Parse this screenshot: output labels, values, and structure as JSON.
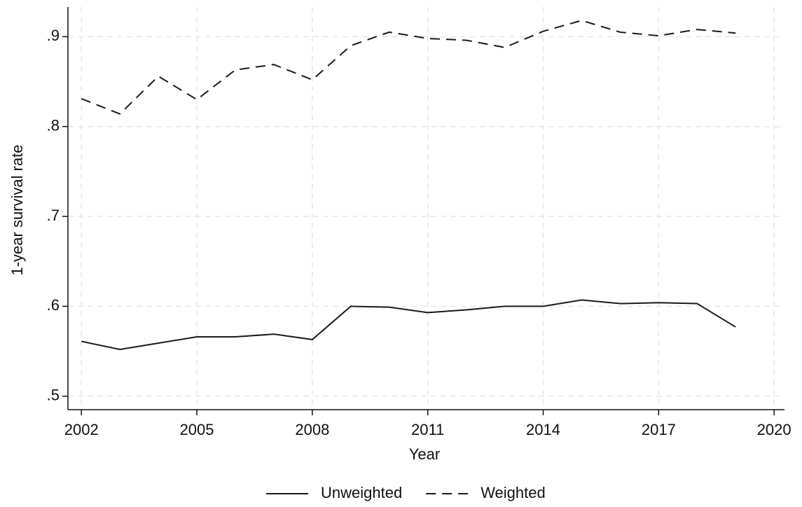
{
  "chart_data": {
    "type": "line",
    "x_label": "Year",
    "y_label": "1-year survival rate",
    "x": [
      2002,
      2003,
      2004,
      2005,
      2006,
      2007,
      2008,
      2009,
      2010,
      2011,
      2012,
      2013,
      2014,
      2015,
      2016,
      2017,
      2018,
      2019
    ],
    "series": [
      {
        "name": "Unweighted",
        "color": "#1a1a1a",
        "dash": "solid",
        "values": [
          0.561,
          0.552,
          0.559,
          0.566,
          0.566,
          0.569,
          0.563,
          0.6,
          0.599,
          0.593,
          0.596,
          0.6,
          0.6,
          0.607,
          0.603,
          0.604,
          0.603,
          0.577
        ]
      },
      {
        "name": "Weighted",
        "color": "#1a1a1a",
        "dash": "dashed",
        "values": [
          0.831,
          0.814,
          0.856,
          0.83,
          0.863,
          0.869,
          0.852,
          0.89,
          0.905,
          0.898,
          0.896,
          0.888,
          0.906,
          0.918,
          0.905,
          0.901,
          0.908,
          0.904
        ]
      }
    ],
    "xlim": [
      2001.65,
      2020.27
    ],
    "ylim": [
      0.485,
      0.933
    ],
    "xticks": [
      2002,
      2005,
      2008,
      2011,
      2014,
      2017,
      2020
    ],
    "yticks": [
      {
        "value": 0.5,
        "label": ".5"
      },
      {
        "value": 0.6,
        "label": ".6"
      },
      {
        "value": 0.7,
        "label": ".7"
      },
      {
        "value": 0.8,
        "label": ".8"
      },
      {
        "value": 0.9,
        "label": ".9"
      }
    ],
    "grid": true,
    "legend": "bottom"
  }
}
